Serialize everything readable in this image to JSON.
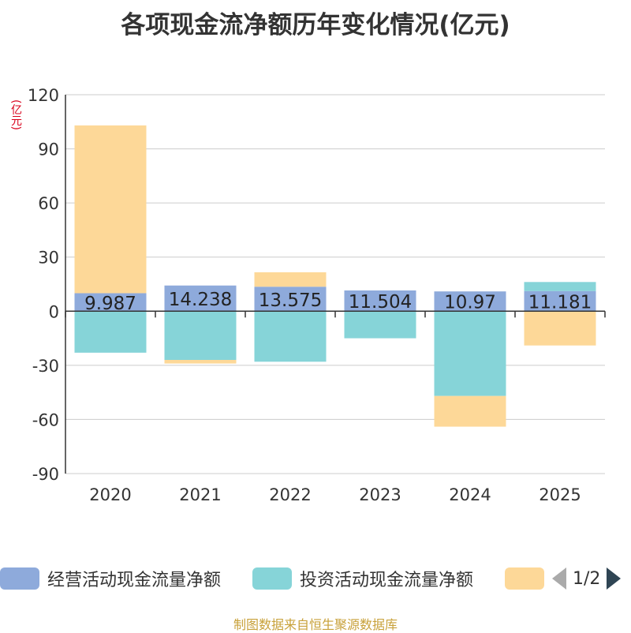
{
  "chart_data": {
    "type": "bar",
    "stacked": true,
    "title": "各项现金流净额历年变化情况(亿元)",
    "ylabel": "(亿元)",
    "xlabel": "",
    "categories": [
      "2020",
      "2021",
      "2022",
      "2023",
      "2024",
      "2025"
    ],
    "ylim": [
      -90,
      120
    ],
    "yticks": [
      120,
      90,
      60,
      30,
      0,
      -30,
      -60,
      -90
    ],
    "series": [
      {
        "name": "经营活动现金流量净额",
        "color": "#8eaadb",
        "values": [
          9.987,
          14.238,
          13.575,
          11.504,
          10.97,
          11.181
        ]
      },
      {
        "name": "投资活动现金流量净额",
        "color": "#86d4d8",
        "values": [
          -23,
          -27,
          -28,
          -15,
          -47,
          5
        ]
      },
      {
        "name": "",
        "color": "#fdd898",
        "values": [
          93,
          -2,
          8,
          0,
          -17,
          -19
        ]
      }
    ],
    "data_labels": [
      "9.987",
      "14.238",
      "13.575",
      "11.504",
      "10.97",
      "11.181"
    ],
    "grid": true
  },
  "legend": {
    "items": [
      {
        "label": "经营活动现金流量净额",
        "color": "#8eaadb"
      },
      {
        "label": "投资活动现金流量净额",
        "color": "#86d4d8"
      },
      {
        "label": "",
        "color": "#fdd898"
      }
    ],
    "page": "1/2"
  },
  "source": "制图数据来自恒生聚源数据库"
}
